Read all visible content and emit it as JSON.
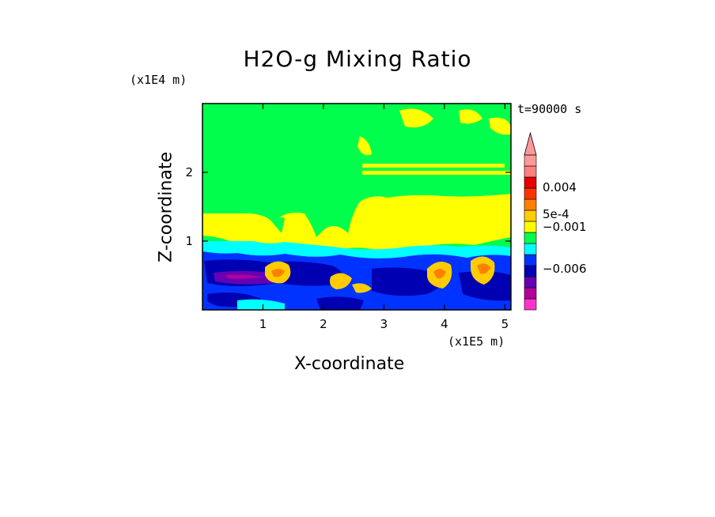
{
  "chart_data": {
    "type": "heatmap",
    "title": "H2O-g Mixing Ratio",
    "xlabel": "X-coordinate",
    "ylabel": "Z-coordinate",
    "x_unit": "(x1E5 m)",
    "y_unit": "(x1E4 m)",
    "time_label": "t=90000 s",
    "xlim": [
      0,
      5.1
    ],
    "ylim": [
      0,
      3
    ],
    "x_ticks": [
      1,
      2,
      3,
      4,
      5
    ],
    "y_ticks": [
      1,
      2
    ],
    "colorbar": {
      "colors": [
        "#ff33cc",
        "#b3009b",
        "#6600b3",
        "#0000b3",
        "#0033ff",
        "#00ffff",
        "#00ff4d",
        "#ffff00",
        "#ffcc00",
        "#ff8000",
        "#ff3300",
        "#e60000",
        "#ff8080",
        "#ff9999"
      ],
      "labels": [
        "0.004",
        "5e-4",
        "−0.001",
        "−0.006"
      ],
      "extend": "max"
    },
    "levels": [
      {
        "value": -0.008,
        "color": "#ff33cc"
      },
      {
        "value": -0.006,
        "color": "#b3009b"
      },
      {
        "value": -0.004,
        "color": "#6600b3"
      },
      {
        "value": -0.002,
        "color": "#0000b3"
      },
      {
        "value": -0.001,
        "color": "#0033ff"
      },
      {
        "value": -0.0005,
        "color": "#00ffff"
      },
      {
        "value": 0.0,
        "color": "#00ff4d"
      },
      {
        "value": 0.0005,
        "color": "#ffff00"
      },
      {
        "value": 0.001,
        "color": "#ffcc00"
      },
      {
        "value": 0.002,
        "color": "#ff8000"
      },
      {
        "value": 0.003,
        "color": "#ff3300"
      },
      {
        "value": 0.004,
        "color": "#e60000"
      },
      {
        "value": 0.006,
        "color": "#ff8080"
      },
      {
        "value": 0.008,
        "color": "#ff9999"
      }
    ]
  }
}
